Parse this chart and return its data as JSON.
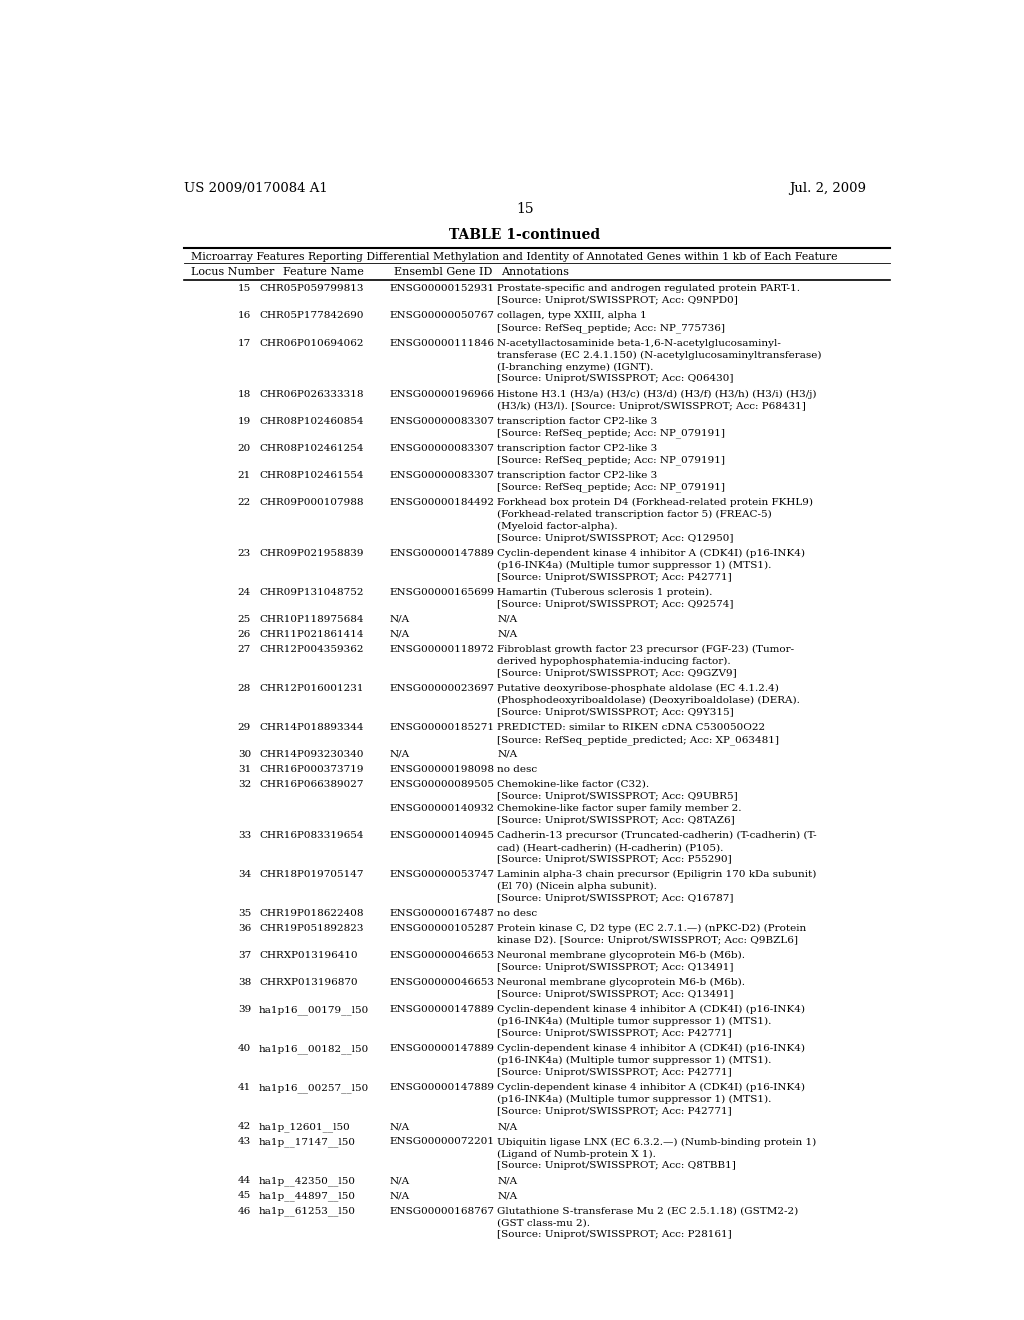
{
  "header_left": "US 2009/0170084 A1",
  "header_right": "Jul. 2, 2009",
  "page_number": "15",
  "table_title": "TABLE 1-continued",
  "table_subtitle": "Microarray Features Reporting Differential Methylation and Identity of Annotated Genes within 1 kb of Each Feature",
  "col_headers": [
    "Locus Number",
    "Feature Name",
    "Ensembl Gene ID",
    "Annotations"
  ],
  "rows": [
    [
      "15",
      "CHR05P059799813",
      "ENSG00000152931",
      "Prostate-specific and androgen regulated protein PART-1.\n[Source: Uniprot/SWISSPROT; Acc: Q9NPD0]"
    ],
    [
      "16",
      "CHR05P177842690",
      "ENSG00000050767",
      "collagen, type XXIII, alpha 1\n[Source: RefSeq_peptide; Acc: NP_775736]"
    ],
    [
      "17",
      "CHR06P010694062",
      "ENSG00000111846",
      "N-acetyllactosaminide beta-1,6-N-acetylglucosaminyl-\ntransferase (EC 2.4.1.150) (N-acetylglucosaminyltransferase)\n(I-branching enzyme) (IGNT).\n[Source: Uniprot/SWISSPROT; Acc: Q06430]"
    ],
    [
      "18",
      "CHR06P026333318",
      "ENSG00000196966",
      "Histone H3.1 (H3/a) (H3/c) (H3/d) (H3/f) (H3/h) (H3/i) (H3/j)\n(H3/k) (H3/l). [Source: Uniprot/SWISSPROT; Acc: P68431]"
    ],
    [
      "19",
      "CHR08P102460854",
      "ENSG00000083307",
      "transcription factor CP2-like 3\n[Source: RefSeq_peptide; Acc: NP_079191]"
    ],
    [
      "20",
      "CHR08P102461254",
      "ENSG00000083307",
      "transcription factor CP2-like 3\n[Source: RefSeq_peptide; Acc: NP_079191]"
    ],
    [
      "21",
      "CHR08P102461554",
      "ENSG00000083307",
      "transcription factor CP2-like 3\n[Source: RefSeq_peptide; Acc: NP_079191]"
    ],
    [
      "22",
      "CHR09P000107988",
      "ENSG00000184492",
      "Forkhead box protein D4 (Forkhead-related protein FKHL9)\n(Forkhead-related transcription factor 5) (FREAC-5)\n(Myeloid factor-alpha).\n[Source: Uniprot/SWISSPROT; Acc: Q12950]"
    ],
    [
      "23",
      "CHR09P021958839",
      "ENSG00000147889",
      "Cyclin-dependent kinase 4 inhibitor A (CDK4I) (p16-INK4)\n(p16-INK4a) (Multiple tumor suppressor 1) (MTS1).\n[Source: Uniprot/SWISSPROT; Acc: P42771]"
    ],
    [
      "24",
      "CHR09P131048752",
      "ENSG00000165699",
      "Hamartin (Tuberous sclerosis 1 protein).\n[Source: Uniprot/SWISSPROT; Acc: Q92574]"
    ],
    [
      "25",
      "CHR10P118975684",
      "N/A",
      "N/A"
    ],
    [
      "26",
      "CHR11P021861414",
      "N/A",
      "N/A"
    ],
    [
      "27",
      "CHR12P004359362",
      "ENSG00000118972",
      "Fibroblast growth factor 23 precursor (FGF-23) (Tumor-\nderived hypophosphatemia-inducing factor).\n[Source: Uniprot/SWISSPROT; Acc: Q9GZV9]"
    ],
    [
      "28",
      "CHR12P016001231",
      "ENSG00000023697",
      "Putative deoxyribose-phosphate aldolase (EC 4.1.2.4)\n(Phosphodeoxyriboaldolase) (Deoxyriboaldolase) (DERA).\n[Source: Uniprot/SWISSPROT; Acc: Q9Y315]"
    ],
    [
      "29",
      "CHR14P018893344",
      "ENSG00000185271",
      "PREDICTED: similar to RIKEN cDNA C530050O22\n[Source: RefSeq_peptide_predicted; Acc: XP_063481]"
    ],
    [
      "30",
      "CHR14P093230340",
      "N/A",
      "N/A"
    ],
    [
      "31",
      "CHR16P000373719",
      "ENSG00000198098",
      "no desc"
    ],
    [
      "32",
      "CHR16P066389027",
      "ENSG00000089505||ENSG00000140932",
      "Chemokine-like factor (C32).\n[Source: Uniprot/SWISSPROT; Acc: Q9UBR5]\nChemokine-like factor super family member 2.\n[Source: Uniprot/SWISSPROT; Acc: Q8TAZ6]"
    ],
    [
      "33",
      "CHR16P083319654",
      "ENSG00000140945",
      "Cadherin-13 precursor (Truncated-cadherin) (T-cadherin) (T-\ncad) (Heart-cadherin) (H-cadherin) (P105).\n[Source: Uniprot/SWISSPROT; Acc: P55290]"
    ],
    [
      "34",
      "CHR18P019705147",
      "ENSG00000053747",
      "Laminin alpha-3 chain precursor (Epiligrin 170 kDa subunit)\n(El 70) (Nicein alpha subunit).\n[Source: Uniprot/SWISSPROT; Acc: Q16787]"
    ],
    [
      "35",
      "CHR19P018622408",
      "ENSG00000167487",
      "no desc"
    ],
    [
      "36",
      "CHR19P051892823",
      "ENSG00000105287",
      "Protein kinase C, D2 type (EC 2.7.1.—) (nPKC-D2) (Protein\nkinase D2). [Source: Uniprot/SWISSPROT; Acc: Q9BZL6]"
    ],
    [
      "37",
      "CHRXP013196410",
      "ENSG00000046653",
      "Neuronal membrane glycoprotein M6-b (M6b).\n[Source: Uniprot/SWISSPROT; Acc: Q13491]"
    ],
    [
      "38",
      "CHRXP013196870",
      "ENSG00000046653",
      "Neuronal membrane glycoprotein M6-b (M6b).\n[Source: Uniprot/SWISSPROT; Acc: Q13491]"
    ],
    [
      "39",
      "ha1p16__00179__l50",
      "ENSG00000147889",
      "Cyclin-dependent kinase 4 inhibitor A (CDK4I) (p16-INK4)\n(p16-INK4a) (Multiple tumor suppressor 1) (MTS1).\n[Source: Uniprot/SWISSPROT; Acc: P42771]"
    ],
    [
      "40",
      "ha1p16__00182__l50",
      "ENSG00000147889",
      "Cyclin-dependent kinase 4 inhibitor A (CDK4I) (p16-INK4)\n(p16-INK4a) (Multiple tumor suppressor 1) (MTS1).\n[Source: Uniprot/SWISSPROT; Acc: P42771]"
    ],
    [
      "41",
      "ha1p16__00257__l50",
      "ENSG00000147889",
      "Cyclin-dependent kinase 4 inhibitor A (CDK4I) (p16-INK4)\n(p16-INK4a) (Multiple tumor suppressor 1) (MTS1).\n[Source: Uniprot/SWISSPROT; Acc: P42771]"
    ],
    [
      "42",
      "ha1p_12601__l50",
      "N/A",
      "N/A"
    ],
    [
      "43",
      "ha1p__17147__l50",
      "ENSG00000072201",
      "Ubiquitin ligase LNX (EC 6.3.2.—) (Numb-binding protein 1)\n(Ligand of Numb-protein X 1).\n[Source: Uniprot/SWISSPROT; Acc: Q8TBB1]"
    ],
    [
      "44",
      "ha1p__42350__l50",
      "N/A",
      "N/A"
    ],
    [
      "45",
      "ha1p__44897__l50",
      "N/A",
      "N/A"
    ],
    [
      "46",
      "ha1p__61253__l50",
      "ENSG00000168767",
      "Glutathione S-transferase Mu 2 (EC 2.5.1.18) (GSTM2-2)\n(GST class-mu 2).\n[Source: Uniprot/SWISSPROT; Acc: P28161]"
    ]
  ]
}
